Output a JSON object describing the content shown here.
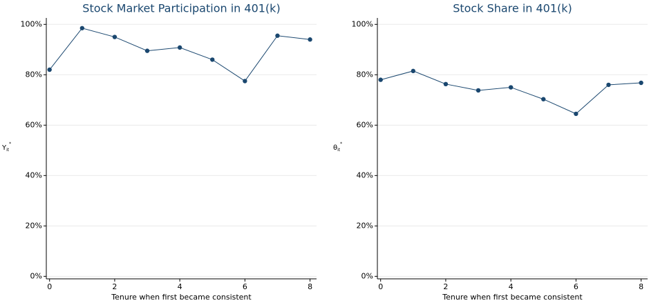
{
  "chart_data": [
    {
      "type": "line",
      "title": "Stock Market Participation in 401(k)",
      "y_label": {
        "base": "Y",
        "sub": "it",
        "sup": "*"
      },
      "x_label": "Tenure when first became consistent",
      "x": [
        0,
        1,
        2,
        3,
        4,
        5,
        6,
        7,
        8
      ],
      "series": [
        {
          "color": "#1a476f",
          "values": [
            82,
            98.5,
            95,
            89.5,
            90.8,
            86,
            77.5,
            95.5,
            94
          ]
        }
      ],
      "xlim": [
        -0.1,
        8.2
      ],
      "xticks": [
        0,
        2,
        4,
        6,
        8
      ],
      "ylim": [
        -1,
        102
      ],
      "yticks": [
        {
          "value": 0,
          "label": "0%"
        },
        {
          "value": 20,
          "label": "20%"
        },
        {
          "value": 40,
          "label": "40%"
        },
        {
          "value": 60,
          "label": "60%"
        },
        {
          "value": 80,
          "label": "80%"
        },
        {
          "value": 100,
          "label": "100%"
        }
      ],
      "grid": true
    },
    {
      "type": "line",
      "title": "Stock Share in 401(k)",
      "y_label": {
        "base": "θ",
        "sub": "it",
        "sup": "*"
      },
      "x_label": "Tenure when first became consistent",
      "x": [
        0,
        1,
        2,
        3,
        4,
        5,
        6,
        7,
        8
      ],
      "series": [
        {
          "color": "#1a476f",
          "values": [
            78,
            81.5,
            76.3,
            73.8,
            75,
            70.3,
            64.5,
            76,
            76.8
          ]
        }
      ],
      "xlim": [
        -0.1,
        8.2
      ],
      "xticks": [
        0,
        2,
        4,
        6,
        8
      ],
      "ylim": [
        -1,
        102
      ],
      "yticks": [
        {
          "value": 0,
          "label": "0%"
        },
        {
          "value": 20,
          "label": "20%"
        },
        {
          "value": 40,
          "label": "40%"
        },
        {
          "value": 60,
          "label": "60%"
        },
        {
          "value": 80,
          "label": "80%"
        },
        {
          "value": 100,
          "label": "100%"
        }
      ],
      "grid": true
    }
  ]
}
